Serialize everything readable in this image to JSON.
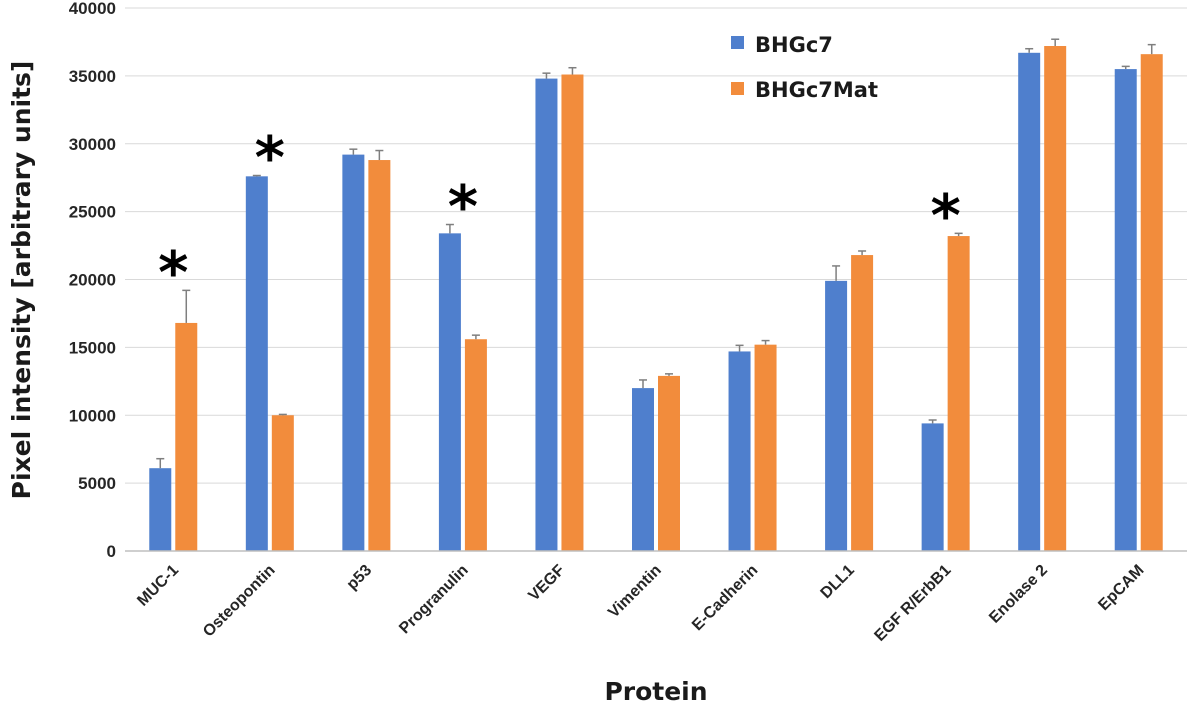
{
  "chart_data": {
    "type": "bar",
    "xlabel": "Protein",
    "ylabel": "Pixel intensity [arbitrary units]",
    "ylim": [
      0,
      40000
    ],
    "yticks": [
      0,
      5000,
      10000,
      15000,
      20000,
      25000,
      30000,
      35000,
      40000
    ],
    "grid": true,
    "legend_position": "top-center",
    "categories": [
      "MUC-1",
      "Osteopontin",
      "p53",
      "Progranulin",
      "VEGF",
      "Vimentin",
      "E-Cadherin",
      "DLL1",
      "EGF R/ErbB1",
      "Enolase 2",
      "EpCAM"
    ],
    "series": [
      {
        "name": "BHGc7",
        "color": "#4f7fcd",
        "values": [
          6100,
          27600,
          29200,
          23400,
          34800,
          12000,
          14700,
          19900,
          9400,
          36700,
          35500
        ],
        "errors": [
          700,
          60,
          400,
          650,
          400,
          600,
          450,
          1100,
          250,
          300,
          200
        ]
      },
      {
        "name": "BHGc7Mat",
        "color": "#f28c3c",
        "values": [
          16800,
          10000,
          28800,
          15600,
          35100,
          12900,
          15200,
          21800,
          23200,
          37200,
          36600
        ],
        "errors": [
          2400,
          60,
          700,
          300,
          500,
          150,
          300,
          300,
          200,
          500,
          700
        ]
      }
    ],
    "annotations": [
      {
        "category": "MUC-1",
        "text": "*"
      },
      {
        "category": "Osteopontin",
        "text": "*"
      },
      {
        "category": "Progranulin",
        "text": "*"
      },
      {
        "category": "EGF R/ErbB1",
        "text": "*"
      }
    ]
  }
}
